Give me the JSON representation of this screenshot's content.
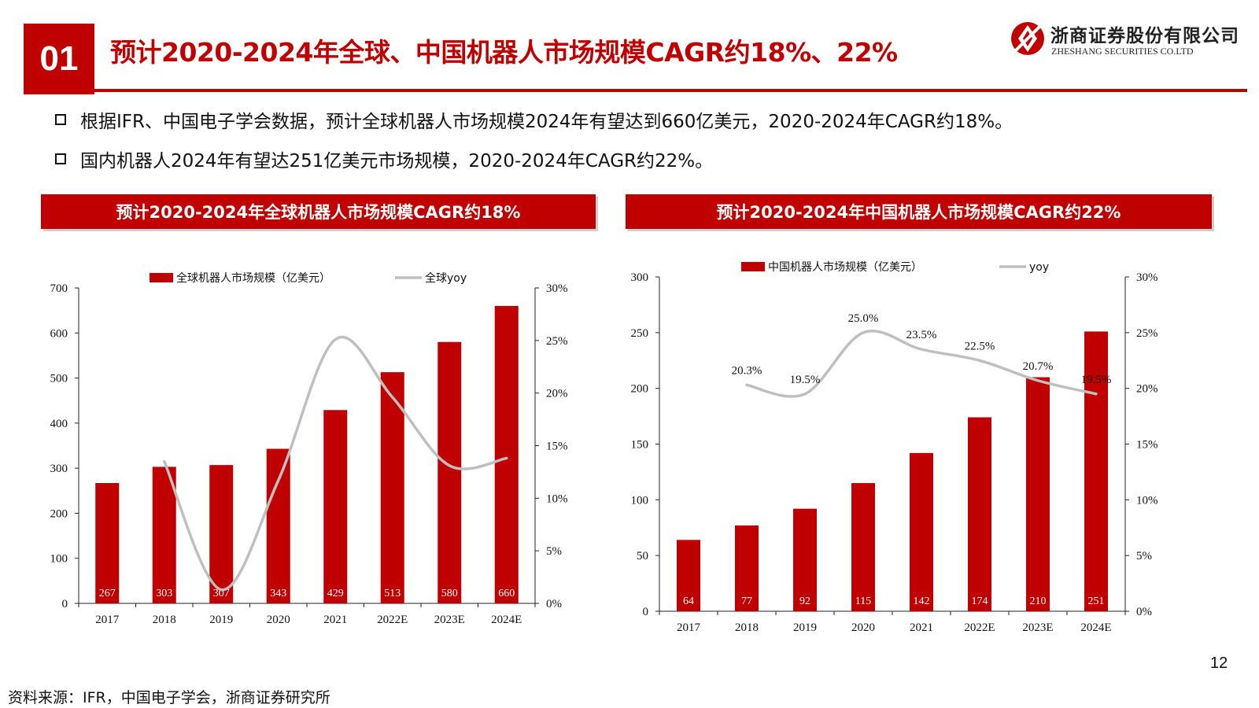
{
  "header": {
    "section_number": "01",
    "title": "预计2020-2024年全球、中国机器人市场规模CAGR约18%、22%",
    "logo_cn": "浙商证券股份有限公司",
    "logo_en": "ZHESHANG SECURITIES CO.LTD",
    "logo_icon": "zheshang-logo-icon"
  },
  "bullets": [
    "根据IFR、中国电子学会数据，预计全球机器人市场规模2024年有望达到660亿美元，2020-2024年CAGR约18%。",
    "国内机器人2024年有望达251亿美元市场规模，2020-2024年CAGR约22%。"
  ],
  "chart_titles": {
    "global": "预计2020-2024年全球机器人市场规模CAGR约18%",
    "china": "预计2020-2024年中国机器人市场规模CAGR约22%"
  },
  "chart_data": [
    {
      "type": "bar",
      "categories": [
        "2017",
        "2018",
        "2019",
        "2020",
        "2021",
        "2022E",
        "2023E",
        "2024E"
      ],
      "series": [
        {
          "name": "全球机器人市场规模（亿美元）",
          "type": "bar",
          "axis": "left",
          "values": [
            267,
            303,
            307,
            343,
            429,
            513,
            580,
            660
          ],
          "labels": [
            "267",
            "303",
            "307",
            "343",
            "429",
            "513",
            "580",
            "660"
          ]
        },
        {
          "name": "全球yoy",
          "type": "line",
          "axis": "right",
          "values": [
            null,
            13.5,
            1.3,
            11.7,
            25.1,
            19.6,
            13.1,
            13.8
          ]
        }
      ],
      "ylim": [
        0,
        700
      ],
      "yticks": [
        "0",
        "100",
        "200",
        "300",
        "400",
        "500",
        "600",
        "700"
      ],
      "y2lim": [
        0,
        30
      ],
      "y2ticks": [
        "0%",
        "5%",
        "10%",
        "15%",
        "20%",
        "25%",
        "30%"
      ],
      "legend_position": "top",
      "grid": false,
      "colors": {
        "bar": "#c00000",
        "line": "#bfbfbf"
      }
    },
    {
      "type": "bar",
      "categories": [
        "2017",
        "2018",
        "2019",
        "2020",
        "2021",
        "2022E",
        "2023E",
        "2024E"
      ],
      "series": [
        {
          "name": "中国机器人市场规模（亿美元）",
          "type": "bar",
          "axis": "left",
          "values": [
            64,
            77,
            92,
            115,
            142,
            174,
            210,
            251
          ],
          "labels": [
            "64",
            "77",
            "92",
            "115",
            "142",
            "174",
            "210",
            "251"
          ]
        },
        {
          "name": "yoy",
          "type": "line",
          "axis": "right",
          "values": [
            null,
            20.3,
            19.5,
            25.0,
            23.5,
            22.5,
            20.7,
            19.5
          ],
          "labels": [
            "",
            "20.3%",
            "19.5%",
            "25.0%",
            "23.5%",
            "22.5%",
            "20.7%",
            "19.5%"
          ]
        }
      ],
      "ylim": [
        0,
        300
      ],
      "yticks": [
        "0",
        "50",
        "100",
        "150",
        "200",
        "250",
        "300"
      ],
      "y2lim": [
        0,
        30
      ],
      "y2ticks": [
        "0%",
        "5%",
        "10%",
        "15%",
        "20%",
        "25%",
        "30%"
      ],
      "legend_position": "top",
      "grid": false,
      "colors": {
        "bar": "#c00000",
        "line": "#bfbfbf"
      }
    }
  ],
  "page_number": "12",
  "source": "资料来源：IFR，中国电子学会，浙商证券研究所"
}
